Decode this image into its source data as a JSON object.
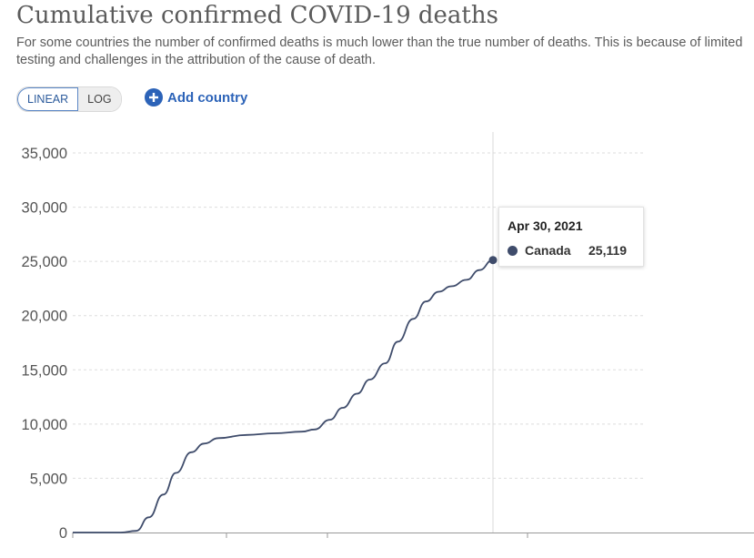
{
  "header": {
    "title": "Cumulative confirmed COVID-19 deaths",
    "subtitle": "For some countries the number of confirmed deaths is much lower than the true number of deaths. This is because of limited testing and challenges in the attribution of the cause of death."
  },
  "controls": {
    "linear_label": "LINEAR",
    "log_label": "LOG",
    "add_country_label": "Add country",
    "selected_scale": "linear"
  },
  "tooltip": {
    "date": "Apr 30, 2021",
    "country": "Canada",
    "value": "25,119"
  },
  "colors": {
    "series": "#3f4c6b",
    "accent": "#2c63b8",
    "grid": "#dddddd"
  },
  "chart_data": {
    "type": "line",
    "title": "Cumulative confirmed COVID-19 deaths",
    "ylim": [
      0,
      35000
    ],
    "yticks": [
      0,
      5000,
      10000,
      15000,
      20000,
      25000,
      30000,
      35000
    ],
    "ytick_labels": [
      "0",
      "5,000",
      "10,000",
      "15,000",
      "20,000",
      "25,000",
      "30,000",
      "35,000"
    ],
    "grid": "horizontal dashed",
    "series": [
      {
        "name": "Canada",
        "color": "#3f4c6b",
        "x": [
          "2020-01-22",
          "2020-03-15",
          "2020-04-01",
          "2020-04-15",
          "2020-05-01",
          "2020-05-15",
          "2020-06-01",
          "2020-06-15",
          "2020-07-01",
          "2020-08-01",
          "2020-09-01",
          "2020-10-01",
          "2020-10-15",
          "2020-11-01",
          "2020-11-15",
          "2020-12-01",
          "2020-12-15",
          "2021-01-01",
          "2021-01-15",
          "2021-02-01",
          "2021-02-15",
          "2021-03-01",
          "2021-03-15",
          "2021-04-01",
          "2021-04-15",
          "2021-04-30"
        ],
        "y": [
          0,
          4,
          150,
          1400,
          3500,
          5500,
          7400,
          8200,
          8700,
          9000,
          9150,
          9300,
          9500,
          10400,
          11500,
          12800,
          14100,
          15600,
          17600,
          19700,
          21300,
          22200,
          22700,
          23300,
          24200,
          25119
        ]
      }
    ],
    "highlight": {
      "x": "2021-04-30",
      "y": 25119,
      "label": "Canada"
    }
  }
}
